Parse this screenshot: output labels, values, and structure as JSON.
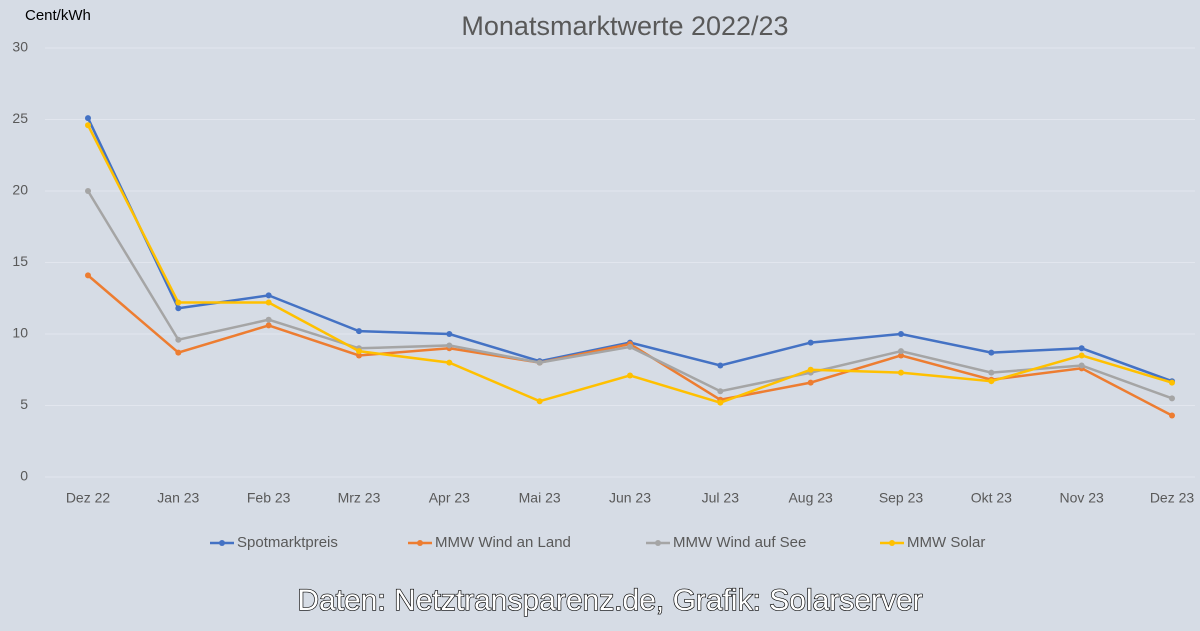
{
  "chart_data": {
    "type": "line",
    "title": "Monatsmarktwerte 2022/23",
    "y_label": "Cent/kWh",
    "categories": [
      "Dez 22",
      "Jan 23",
      "Feb 23",
      "Mrz 23",
      "Apr 23",
      "Mai 23",
      "Jun 23",
      "Jul 23",
      "Aug 23",
      "Sep 23",
      "Okt 23",
      "Nov 23",
      "Dez 23"
    ],
    "series": [
      {
        "name": "Spotmarktpreis",
        "color": "#4472c4",
        "values": [
          25.1,
          11.8,
          12.7,
          10.2,
          10.0,
          8.1,
          9.4,
          7.8,
          9.4,
          10.0,
          8.7,
          9.0,
          6.7
        ]
      },
      {
        "name": "MMW Wind an Land",
        "color": "#ed7d31",
        "values": [
          14.1,
          8.7,
          10.6,
          8.5,
          9.0,
          8.0,
          9.3,
          5.4,
          6.6,
          8.5,
          6.8,
          7.6,
          4.3
        ]
      },
      {
        "name": "MMW Wind auf See",
        "color": "#a5a5a5",
        "values": [
          20.0,
          9.6,
          11.0,
          9.0,
          9.2,
          8.0,
          9.1,
          6.0,
          7.3,
          8.8,
          7.3,
          7.8,
          5.5
        ]
      },
      {
        "name": "MMW Solar",
        "color": "#ffc000",
        "values": [
          24.6,
          12.2,
          12.2,
          8.8,
          8.0,
          5.3,
          7.1,
          5.2,
          7.5,
          7.3,
          6.7,
          8.5,
          6.6
        ]
      }
    ],
    "ylim": [
      0,
      30
    ],
    "yticks": [
      0,
      5,
      10,
      15,
      20,
      25,
      30
    ],
    "grid": true,
    "legend": "bottom",
    "source": "Daten: Netztransparenz.de, Grafik: Solarserver"
  }
}
